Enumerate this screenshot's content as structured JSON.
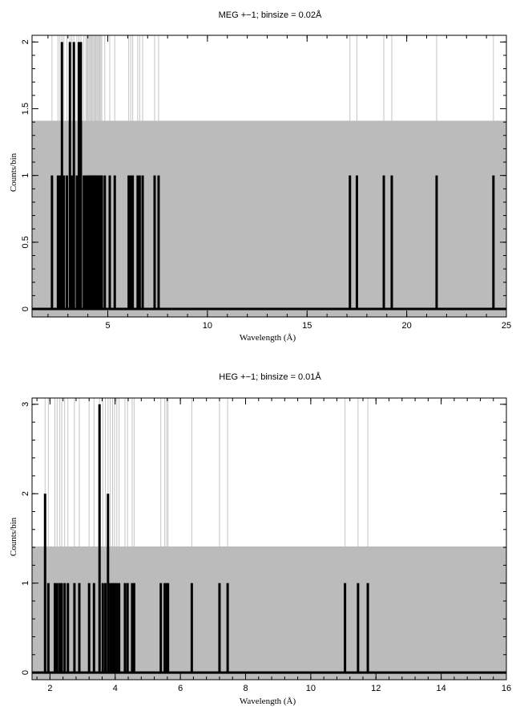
{
  "chart_data": [
    {
      "type": "line",
      "title": "MEG +−1; binsize = 0.02Å",
      "xlabel": "Wavelength (Å)",
      "ylabel": "Counts/bin",
      "xlim": [
        1.2,
        25
      ],
      "ylim": [
        -0.06,
        2.05
      ],
      "xticks": [
        5,
        10,
        15,
        20,
        25
      ],
      "yticks": [
        0,
        0.5,
        1,
        1.5,
        2
      ],
      "ytick_labels": [
        "0",
        "0.5",
        "1",
        "1.5",
        "2"
      ],
      "grid": false,
      "band": {
        "name": "background",
        "y": 1.41,
        "color": "#bbbbbb"
      },
      "series": [
        {
          "color": "#000000",
          "events": [
            [
              2.2,
              1
            ],
            [
              2.5,
              1
            ],
            [
              2.6,
              1
            ],
            [
              2.7,
              2
            ],
            [
              2.8,
              1
            ],
            [
              2.95,
              1
            ],
            [
              3.1,
              2
            ],
            [
              3.2,
              1
            ],
            [
              3.3,
              2
            ],
            [
              3.45,
              1
            ],
            [
              3.55,
              2
            ],
            [
              3.65,
              2
            ],
            [
              3.8,
              1
            ],
            [
              3.9,
              1
            ],
            [
              3.95,
              1
            ],
            [
              4.0,
              1
            ],
            [
              4.05,
              1
            ],
            [
              4.1,
              1
            ],
            [
              4.15,
              1
            ],
            [
              4.2,
              1
            ],
            [
              4.25,
              1
            ],
            [
              4.3,
              1
            ],
            [
              4.35,
              1
            ],
            [
              4.4,
              1
            ],
            [
              4.45,
              1
            ],
            [
              4.5,
              1
            ],
            [
              4.55,
              1
            ],
            [
              4.6,
              1
            ],
            [
              4.65,
              1
            ],
            [
              4.7,
              1
            ],
            [
              4.85,
              1
            ],
            [
              5.1,
              1
            ],
            [
              5.35,
              1
            ],
            [
              6.05,
              1
            ],
            [
              6.15,
              1
            ],
            [
              6.25,
              1
            ],
            [
              6.5,
              1
            ],
            [
              6.6,
              1
            ],
            [
              6.75,
              1
            ],
            [
              7.35,
              1
            ],
            [
              7.55,
              1
            ],
            [
              17.15,
              1
            ],
            [
              17.5,
              1
            ],
            [
              18.85,
              1
            ],
            [
              19.25,
              1
            ],
            [
              21.5,
              1
            ],
            [
              24.35,
              1
            ]
          ]
        }
      ],
      "faint_color": "#c4c4c4"
    },
    {
      "type": "line",
      "title": "HEG +−1; binsize = 0.01Å",
      "xlabel": "Wavelength (Å)",
      "ylabel": "Counts/bin",
      "xlim": [
        1.45,
        16
      ],
      "ylim": [
        -0.08,
        3.07
      ],
      "xticks": [
        2,
        4,
        6,
        8,
        10,
        12,
        14,
        16
      ],
      "yticks": [
        0,
        1,
        2,
        3
      ],
      "ytick_labels": [
        "0",
        "1",
        "2",
        "3"
      ],
      "grid": false,
      "band": {
        "name": "background",
        "y": 1.41,
        "color": "#bbbbbb"
      },
      "series": [
        {
          "color": "#000000",
          "events": [
            [
              1.85,
              2
            ],
            [
              1.95,
              1
            ],
            [
              2.15,
              1
            ],
            [
              2.22,
              1
            ],
            [
              2.3,
              1
            ],
            [
              2.36,
              1
            ],
            [
              2.45,
              1
            ],
            [
              2.55,
              1
            ],
            [
              2.75,
              1
            ],
            [
              2.9,
              1
            ],
            [
              3.2,
              1
            ],
            [
              3.35,
              1
            ],
            [
              3.52,
              3
            ],
            [
              3.62,
              1
            ],
            [
              3.7,
              1
            ],
            [
              3.78,
              2
            ],
            [
              3.85,
              1
            ],
            [
              3.92,
              1
            ],
            [
              3.98,
              1
            ],
            [
              4.05,
              1
            ],
            [
              4.12,
              1
            ],
            [
              4.3,
              1
            ],
            [
              4.38,
              1
            ],
            [
              4.52,
              1
            ],
            [
              4.58,
              1
            ],
            [
              5.4,
              1
            ],
            [
              5.52,
              1
            ],
            [
              5.58,
              1
            ],
            [
              5.62,
              1
            ],
            [
              6.35,
              1
            ],
            [
              7.2,
              1
            ],
            [
              7.45,
              1
            ],
            [
              11.05,
              1
            ],
            [
              11.45,
              1
            ],
            [
              11.75,
              1
            ]
          ]
        }
      ],
      "faint_color": "#c4c4c4"
    }
  ]
}
